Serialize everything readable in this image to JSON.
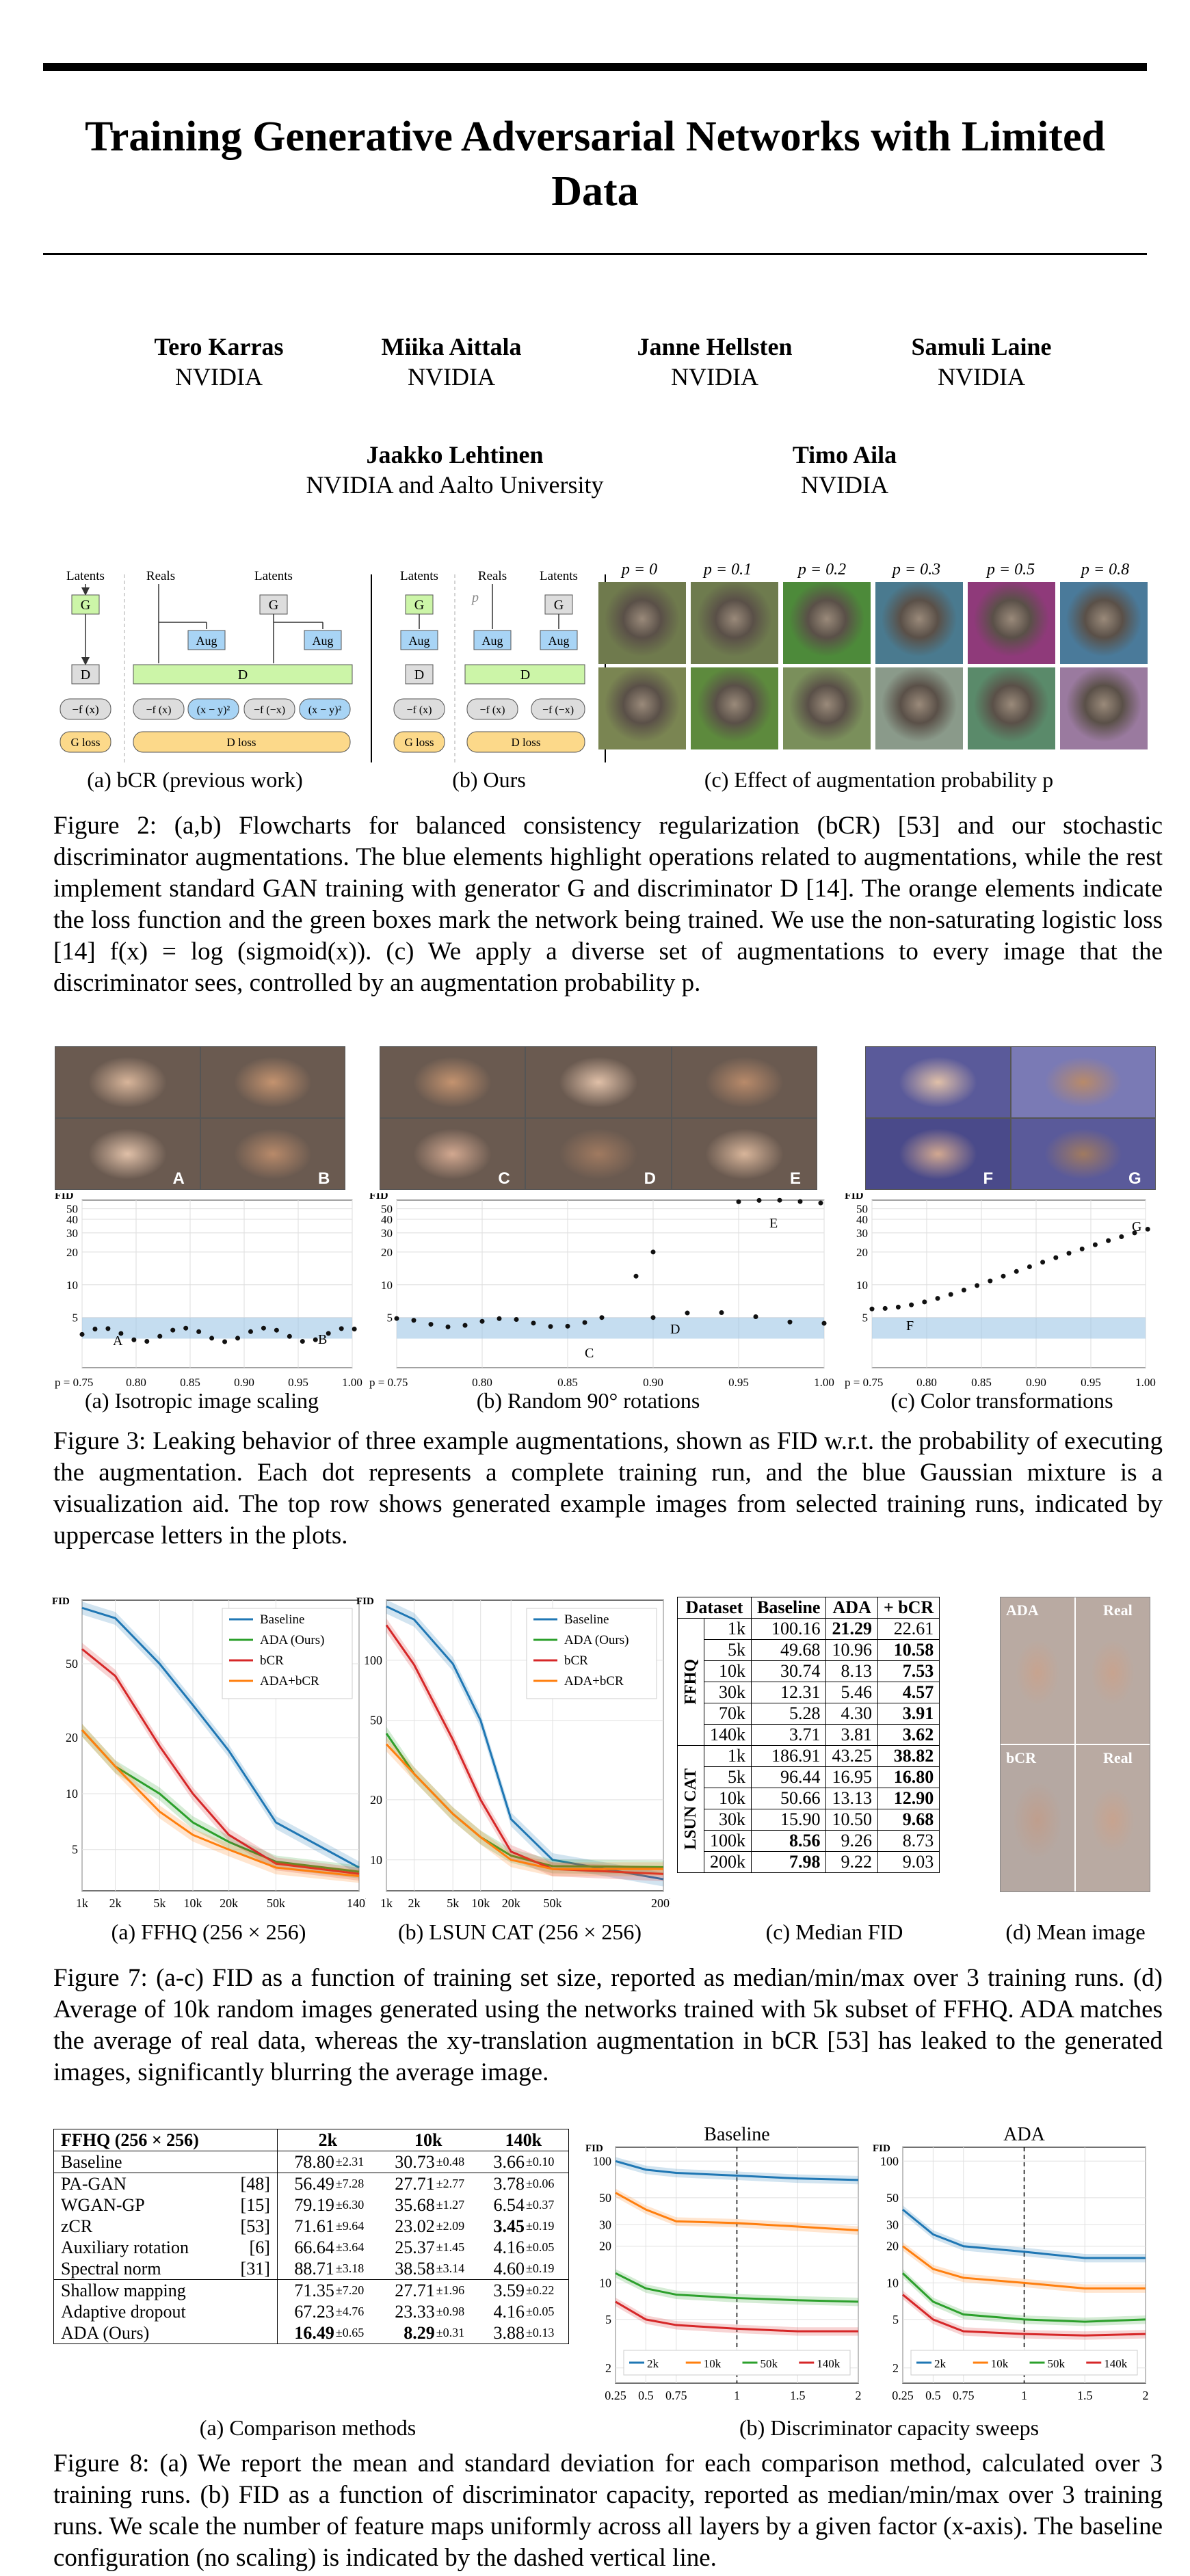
{
  "title": "Training Generative Adversarial Networks with Limited Data",
  "authors": [
    {
      "name": "Tero Karras",
      "aff": "NVIDIA"
    },
    {
      "name": "Miika Aittala",
      "aff": "NVIDIA"
    },
    {
      "name": "Janne Hellsten",
      "aff": "NVIDIA"
    },
    {
      "name": "Samuli Laine",
      "aff": "NVIDIA"
    },
    {
      "name": "Jaakko Lehtinen",
      "aff": "NVIDIA and Aalto University"
    },
    {
      "name": "Timo Aila",
      "aff": "NVIDIA"
    }
  ],
  "fig2": {
    "sub_a": "(a) bCR (previous work)",
    "sub_b": "(b) Ours",
    "sub_c": "(c) Effect of augmentation probability p",
    "labels": {
      "latents": "Latents",
      "reals": "Reals",
      "g": "G",
      "d": "D",
      "aug": "Aug",
      "fx": "−f (x)",
      "fnx": "−f (−x)",
      "xy": "(x − y)²",
      "gloss": "G loss",
      "dloss": "D loss",
      "p": "p"
    },
    "p_values": [
      "p = 0",
      "p = 0.1",
      "p = 0.2",
      "p = 0.3",
      "p = 0.5",
      "p = 0.8"
    ],
    "caption": "Figure 2: (a,b) Flowcharts for balanced consistency regularization (bCR) [53] and our stochastic discriminator augmentations. The blue elements highlight operations related to augmentations, while the rest implement standard GAN training with generator G and discriminator D [14]. The orange elements indicate the loss function and the green boxes mark the network being trained. We use the non-saturating logistic loss [14] f(x) = log (sigmoid(x)). (c) We apply a diverse set of augmentations to every image that the discriminator sees, controlled by an augmentation probability p."
  },
  "fig3": {
    "sub_a": "(a) Isotropic image scaling",
    "sub_b": "(b) Random 90° rotations",
    "sub_c": "(c) Color transformations",
    "ylabel": "FID",
    "yticks": [
      "50",
      "40",
      "30",
      "20",
      "10",
      "5"
    ],
    "xticks": [
      "p = 0.75",
      "0.80",
      "0.85",
      "0.90",
      "0.95",
      "1.00"
    ],
    "letters": [
      "A",
      "B",
      "C",
      "D",
      "E",
      "F",
      "G"
    ],
    "caption": "Figure 3: Leaking behavior of three example augmentations, shown as FID w.r.t. the probability of executing the augmentation. Each dot represents a complete training run, and the blue Gaussian mixture is a visualization aid. The top row shows generated example images from selected training runs, indicated by uppercase letters in the plots."
  },
  "chart_data": [
    {
      "type": "line",
      "title": "",
      "ylabel": "FID",
      "xlabel": "",
      "categories": [
        "1k",
        "2k",
        "5k",
        "10k",
        "20k",
        "50k",
        "140k"
      ],
      "log_y": true,
      "log_x": true,
      "yticks": [
        "5",
        "10",
        "20",
        "50"
      ],
      "series": [
        {
          "name": "Baseline",
          "color": "#1f77b4",
          "values": [
            100,
            88,
            50,
            30,
            17,
            7,
            4
          ]
        },
        {
          "name": "ADA (Ours)",
          "color": "#2ca02c",
          "values": [
            22,
            14,
            10,
            7,
            5.5,
            4.3,
            3.8
          ]
        },
        {
          "name": "bCR",
          "color": "#d62728",
          "values": [
            60,
            43,
            18,
            10,
            6,
            4.2,
            3.7
          ]
        },
        {
          "name": "ADA+bCR",
          "color": "#ff7f0e",
          "values": [
            22,
            14,
            8,
            6,
            5,
            4,
            3.6
          ]
        }
      ]
    },
    {
      "type": "line",
      "title": "",
      "ylabel": "FID",
      "xlabel": "",
      "categories": [
        "1k",
        "2k",
        "5k",
        "10k",
        "20k",
        "50k",
        "200k"
      ],
      "log_y": true,
      "log_x": true,
      "yticks": [
        "10",
        "20",
        "50",
        "100"
      ],
      "series": [
        {
          "name": "Baseline",
          "color": "#1f77b4",
          "values": [
            186,
            160,
            96,
            50,
            16,
            10,
            8
          ]
        },
        {
          "name": "ADA (Ours)",
          "color": "#2ca02c",
          "values": [
            43,
            27,
            17,
            13,
            10.5,
            9.3,
            9.2
          ]
        },
        {
          "name": "bCR",
          "color": "#d62728",
          "values": [
            150,
            95,
            40,
            20,
            11,
            9,
            8.5
          ]
        },
        {
          "name": "ADA+bCR",
          "color": "#ff7f0e",
          "values": [
            38,
            27,
            17,
            13,
            10,
            9,
            9
          ]
        }
      ]
    },
    {
      "type": "line",
      "title": "Baseline",
      "ylabel": "FID",
      "xlabel": "",
      "x": [
        0.25,
        0.5,
        0.75,
        1,
        1.5,
        2
      ],
      "log_y": true,
      "yticks": [
        "2",
        "5",
        "10",
        "20",
        "30",
        "50",
        "100"
      ],
      "xticks": [
        "0.25",
        "0.5",
        "0.75",
        "1",
        "1.5",
        "2"
      ],
      "series": [
        {
          "name": "2k",
          "color": "#1f77b4",
          "values": [
            100,
            85,
            80,
            76,
            72,
            70
          ]
        },
        {
          "name": "10k",
          "color": "#ff7f0e",
          "values": [
            55,
            40,
            32,
            31,
            29,
            27
          ]
        },
        {
          "name": "50k",
          "color": "#2ca02c",
          "values": [
            12,
            9,
            8,
            7.5,
            7.2,
            7
          ]
        },
        {
          "name": "140k",
          "color": "#d62728",
          "values": [
            7,
            5,
            4.5,
            4.2,
            4,
            4
          ]
        }
      ]
    },
    {
      "type": "line",
      "title": "ADA",
      "ylabel": "FID",
      "xlabel": "",
      "x": [
        0.25,
        0.5,
        0.75,
        1,
        1.5,
        2
      ],
      "log_y": true,
      "yticks": [
        "2",
        "5",
        "10",
        "20",
        "30",
        "50",
        "100"
      ],
      "xticks": [
        "0.25",
        "0.5",
        "0.75",
        "1",
        "1.5",
        "2"
      ],
      "series": [
        {
          "name": "2k",
          "color": "#1f77b4",
          "values": [
            40,
            25,
            20,
            18,
            16,
            16
          ]
        },
        {
          "name": "10k",
          "color": "#ff7f0e",
          "values": [
            20,
            13,
            11,
            10,
            9,
            9
          ]
        },
        {
          "name": "50k",
          "color": "#2ca02c",
          "values": [
            12,
            7,
            5.5,
            5,
            4.8,
            5
          ]
        },
        {
          "name": "140k",
          "color": "#d62728",
          "values": [
            8,
            5,
            4,
            3.8,
            3.7,
            3.8
          ]
        }
      ]
    }
  ],
  "fig7": {
    "sub_a": "(a) FFHQ (256 × 256)",
    "sub_b": "(b) LSUN CAT (256 × 256)",
    "sub_c": "(c) Median FID",
    "sub_d": "(d) Mean image",
    "table": {
      "headers": [
        "Dataset",
        "Baseline",
        "ADA",
        "+ bCR"
      ],
      "groups": [
        {
          "name": "FFHQ",
          "rows": [
            [
              "1k",
              "100.16",
              "21.29",
              "22.61"
            ],
            [
              "5k",
              "49.68",
              "10.96",
              "10.58"
            ],
            [
              "10k",
              "30.74",
              "8.13",
              "7.53"
            ],
            [
              "30k",
              "12.31",
              "5.46",
              "4.57"
            ],
            [
              "70k",
              "5.28",
              "4.30",
              "3.91"
            ],
            [
              "140k",
              "3.71",
              "3.81",
              "3.62"
            ]
          ],
          "bold": [
            [
              0,
              2
            ],
            [
              1,
              3
            ],
            [
              2,
              3
            ],
            [
              3,
              3
            ],
            [
              4,
              3
            ],
            [
              5,
              3
            ]
          ]
        },
        {
          "name": "LSUN CAT",
          "rows": [
            [
              "1k",
              "186.91",
              "43.25",
              "38.82"
            ],
            [
              "5k",
              "96.44",
              "16.95",
              "16.80"
            ],
            [
              "10k",
              "50.66",
              "13.13",
              "12.90"
            ],
            [
              "30k",
              "15.90",
              "10.50",
              "9.68"
            ],
            [
              "100k",
              "8.56",
              "9.26",
              "8.73"
            ],
            [
              "200k",
              "7.98",
              "9.22",
              "9.03"
            ]
          ],
          "bold": [
            [
              0,
              3
            ],
            [
              1,
              3
            ],
            [
              2,
              3
            ],
            [
              3,
              3
            ],
            [
              4,
              1
            ],
            [
              5,
              1
            ]
          ]
        }
      ]
    },
    "mean_labels": [
      "ADA",
      "Real",
      "bCR",
      "Real"
    ],
    "caption": "Figure 7: (a-c) FID as a function of training set size, reported as median/min/max over 3 training runs. (d) Average of 10k random images generated using the networks trained with 5k subset of FFHQ. ADA matches the average of real data, whereas the xy-translation augmentation in bCR [53] has leaked to the generated images, significantly blurring the average image."
  },
  "fig8": {
    "sub_a": "(a) Comparison methods",
    "sub_b": "(b) Discriminator capacity sweeps",
    "table": {
      "head": [
        "FFHQ (256 × 256)",
        "2k",
        "10k",
        "140k"
      ],
      "groups": [
        [
          [
            "Baseline",
            "",
            "78.80",
            "±2.31",
            "30.73",
            "±0.48",
            "3.66",
            "±0.10"
          ]
        ],
        [
          [
            "PA-GAN",
            "[48]",
            "56.49",
            "±7.28",
            "27.71",
            "±2.77",
            "3.78",
            "±0.06"
          ],
          [
            "WGAN-GP",
            "[15]",
            "79.19",
            "±6.30",
            "35.68",
            "±1.27",
            "6.54",
            "±0.37"
          ],
          [
            "zCR",
            "[53]",
            "71.61",
            "±9.64",
            "23.02",
            "±2.09",
            "3.45",
            "±0.19"
          ],
          [
            "Auxiliary rotation",
            "[6]",
            "66.64",
            "±3.64",
            "25.37",
            "±1.45",
            "4.16",
            "±0.05"
          ],
          [
            "Spectral norm",
            "[31]",
            "88.71",
            "±3.18",
            "38.58",
            "±3.14",
            "4.60",
            "±0.19"
          ]
        ],
        [
          [
            "Shallow mapping",
            "",
            "71.35",
            "±7.20",
            "27.71",
            "±1.96",
            "3.59",
            "±0.22"
          ],
          [
            "Adaptive dropout",
            "",
            "67.23",
            "±4.76",
            "23.33",
            "±0.98",
            "4.16",
            "±0.05"
          ],
          [
            "ADA (Ours)",
            "",
            "16.49",
            "±0.65",
            "8.29",
            "±0.31",
            "3.88",
            "±0.13"
          ]
        ]
      ]
    },
    "caption": "Figure 8: (a) We report the mean and standard deviation for each comparison method, calculated over 3 training runs. (b) FID as a function of discriminator capacity, reported as median/min/max over 3 training runs. We scale the number of feature maps uniformly across all layers by a given factor (x-axis). The baseline configuration (no scaling) is indicated by the dashed vertical line."
  }
}
